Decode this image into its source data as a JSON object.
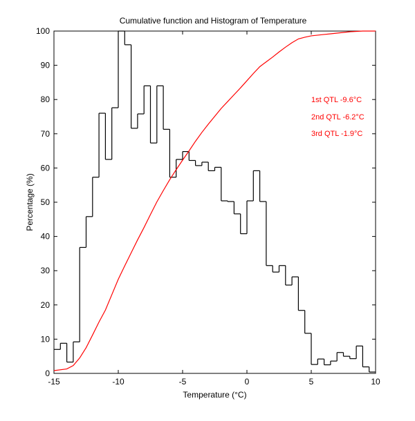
{
  "chart_data": {
    "type": "line",
    "title": "Cumulative function and Histogram of Temperature",
    "xlabel": "Temperature (°C)",
    "ylabel": "Percentage (%)",
    "xlim": [
      -15,
      10
    ],
    "ylim": [
      0,
      100
    ],
    "xticks": [
      -15,
      -10,
      -5,
      0,
      5,
      10
    ],
    "yticks": [
      0,
      10,
      20,
      30,
      40,
      50,
      60,
      70,
      80,
      90,
      100
    ],
    "grid": false,
    "colors": {
      "histogram": "#000000",
      "cumulative": "#ff0000",
      "annotations": "#ff0000"
    },
    "annotations": [
      "1st QTL -9.6°C",
      "2nd QTL -6.2°C",
      "3rd QTL -1.9°C"
    ],
    "series": [
      {
        "name": "Histogram",
        "style": "stairs",
        "bin_edges": [
          -15,
          -14.5,
          -14,
          -13.5,
          -13,
          -12.5,
          -12,
          -11.5,
          -11,
          -10.5,
          -10,
          -9.5,
          -9,
          -8.5,
          -8,
          -7.5,
          -7,
          -6.5,
          -6,
          -5.5,
          -5,
          -4.5,
          -4,
          -3.5,
          -3,
          -2.5,
          -2,
          -1.5,
          -1,
          -0.5,
          0,
          0.5,
          1,
          1.5,
          2,
          2.5,
          3,
          3.5,
          4,
          4.5,
          5,
          5.5,
          6,
          6.5,
          7,
          7.5,
          8,
          8.5,
          9,
          9.5,
          10
        ],
        "values": [
          7,
          8.8,
          3.3,
          9.2,
          36.8,
          45.8,
          57.3,
          76,
          62.5,
          77.6,
          100,
          96,
          71.6,
          75.8,
          84,
          67.3,
          84,
          71.3,
          57.3,
          62.5,
          64.8,
          62.2,
          60.7,
          61.7,
          59.2,
          60.2,
          50.4,
          50.2,
          46.6,
          40.8,
          50.4,
          59.2,
          50.2,
          31.5,
          29.6,
          31.5,
          25.8,
          28.2,
          18.4,
          11.7,
          2.6,
          4.2,
          2.5,
          3.6,
          6.1,
          5,
          4.3,
          8,
          1.9,
          0.4
        ]
      },
      {
        "name": "Cumulative",
        "x": [
          -15,
          -14,
          -13.5,
          -13,
          -12.5,
          -12,
          -11.5,
          -11,
          -10.5,
          -10,
          -9.5,
          -9,
          -8.5,
          -8,
          -7.5,
          -7,
          -6.5,
          -6,
          -5.5,
          -5,
          -4.5,
          -4,
          -3.5,
          -3,
          -2.5,
          -2,
          -1.5,
          -1,
          -0.5,
          0,
          0.5,
          1,
          1.5,
          2,
          2.5,
          3,
          3.5,
          4,
          4.5,
          5,
          5.5,
          6,
          6.5,
          7,
          7.5,
          8,
          8.5,
          9,
          9.5,
          10
        ],
        "y": [
          0.8,
          1.3,
          2.3,
          4.5,
          7.5,
          11.2,
          15.0,
          18.5,
          23.0,
          27.5,
          31.4,
          35.2,
          39.0,
          42.6,
          46.4,
          50.1,
          53.4,
          56.6,
          59.5,
          62.3,
          65.0,
          67.8,
          70.4,
          72.8,
          75.1,
          77.4,
          79.4,
          81.4,
          83.4,
          85.5,
          87.6,
          89.6,
          91.0,
          92.4,
          93.9,
          95.3,
          96.6,
          97.7,
          98.2,
          98.6,
          98.8,
          99.0,
          99.2,
          99.4,
          99.6,
          99.8,
          99.9,
          100,
          100,
          100
        ]
      }
    ]
  }
}
